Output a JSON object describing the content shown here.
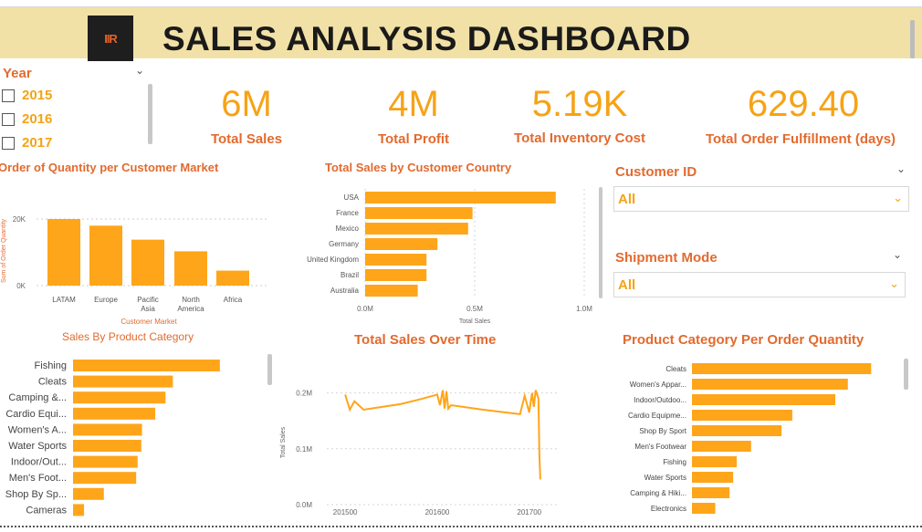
{
  "header": {
    "title": "SALES ANALYSIS DASHBOARD",
    "logo_text": "IIR"
  },
  "year_slicer": {
    "title": "Year",
    "options": [
      "2015",
      "2016",
      "2017"
    ]
  },
  "kpis": [
    {
      "value": "6M",
      "label": "Total Sales"
    },
    {
      "value": "4M",
      "label": "Total Profit"
    },
    {
      "value": "5.19K",
      "label": "Total Inventory Cost"
    },
    {
      "value": "629.40",
      "label": "Total Order Fulfillment (days)"
    }
  ],
  "customer_slicer": {
    "title": "Customer ID",
    "value": "All"
  },
  "shipment_slicer": {
    "title": "Shipment Mode",
    "value": "All"
  },
  "colors": {
    "bar": "#ffa51a",
    "accent": "#e36a2e",
    "header_bg": "#f2e1a6"
  },
  "chart_data": [
    {
      "type": "bar",
      "title": "Order of Quantity per Customer Market",
      "xlabel": "Customer Market",
      "ylabel": "Sum of Order Quantity",
      "categories": [
        "LATAM",
        "Europe",
        "Pacific Asia",
        "North America",
        "Africa"
      ],
      "values": [
        20000,
        18000,
        13800,
        10300,
        4500
      ],
      "yticks": [
        "0K",
        "20K"
      ],
      "ylim": [
        0,
        25000
      ]
    },
    {
      "type": "bar",
      "orientation": "horizontal",
      "title": "Total Sales by Customer Country",
      "xlabel": "Total Sales",
      "categories": [
        "USA",
        "France",
        "Mexico",
        "Germany",
        "United Kingdom",
        "Brazil",
        "Australia"
      ],
      "values": [
        870000,
        490000,
        470000,
        330000,
        280000,
        280000,
        240000
      ],
      "xticks": [
        "0.0M",
        "0.5M",
        "1.0M"
      ],
      "xlim": [
        0,
        1000000
      ]
    },
    {
      "type": "bar",
      "orientation": "horizontal",
      "title": "Sales By Product Category",
      "categories": [
        "Fishing",
        "Cleats",
        "Camping &...",
        "Cardio Equi...",
        "Women's A...",
        "Water Sports",
        "Indoor/Out...",
        "Men's Foot...",
        "Shop By Sp...",
        "Cameras"
      ],
      "values": [
        1000,
        680,
        630,
        560,
        470,
        465,
        440,
        430,
        210,
        75
      ],
      "xlim": [
        0,
        1200
      ]
    },
    {
      "type": "line",
      "title": "Total Sales Over Time",
      "ylabel": "Total Sales",
      "xticks": [
        "201500",
        "201600",
        "201700"
      ],
      "yticks": [
        "0.0M",
        "0.1M",
        "0.2M"
      ],
      "x": [
        201500,
        201505,
        201510,
        201520,
        201540,
        201560,
        201580,
        201600,
        201603,
        201606,
        201608,
        201610,
        201612,
        201615,
        201650,
        201690,
        201695,
        201700,
        201703,
        201705,
        201707,
        201710,
        201711,
        201712
      ],
      "y": [
        0.197,
        0.17,
        0.185,
        0.17,
        0.175,
        0.18,
        0.188,
        0.197,
        0.178,
        0.205,
        0.172,
        0.203,
        0.172,
        0.178,
        0.17,
        0.162,
        0.195,
        0.165,
        0.2,
        0.175,
        0.205,
        0.19,
        0.09,
        0.045
      ],
      "xlim": [
        201480,
        201730
      ],
      "ylim": [
        0,
        0.25
      ]
    },
    {
      "type": "bar",
      "orientation": "horizontal",
      "title": "Product Category Per Order Quantity",
      "categories": [
        "Cleats",
        "Women's Appar...",
        "Indoor/Outdoo...",
        "Cardio Equipme...",
        "Shop By Sport",
        "Men's Footwear",
        "Fishing",
        "Water Sports",
        "Camping & Hiki...",
        "Electronics"
      ],
      "values": [
        1000,
        870,
        800,
        560,
        500,
        330,
        250,
        230,
        210,
        130
      ],
      "xlim": [
        0,
        1080
      ]
    }
  ]
}
